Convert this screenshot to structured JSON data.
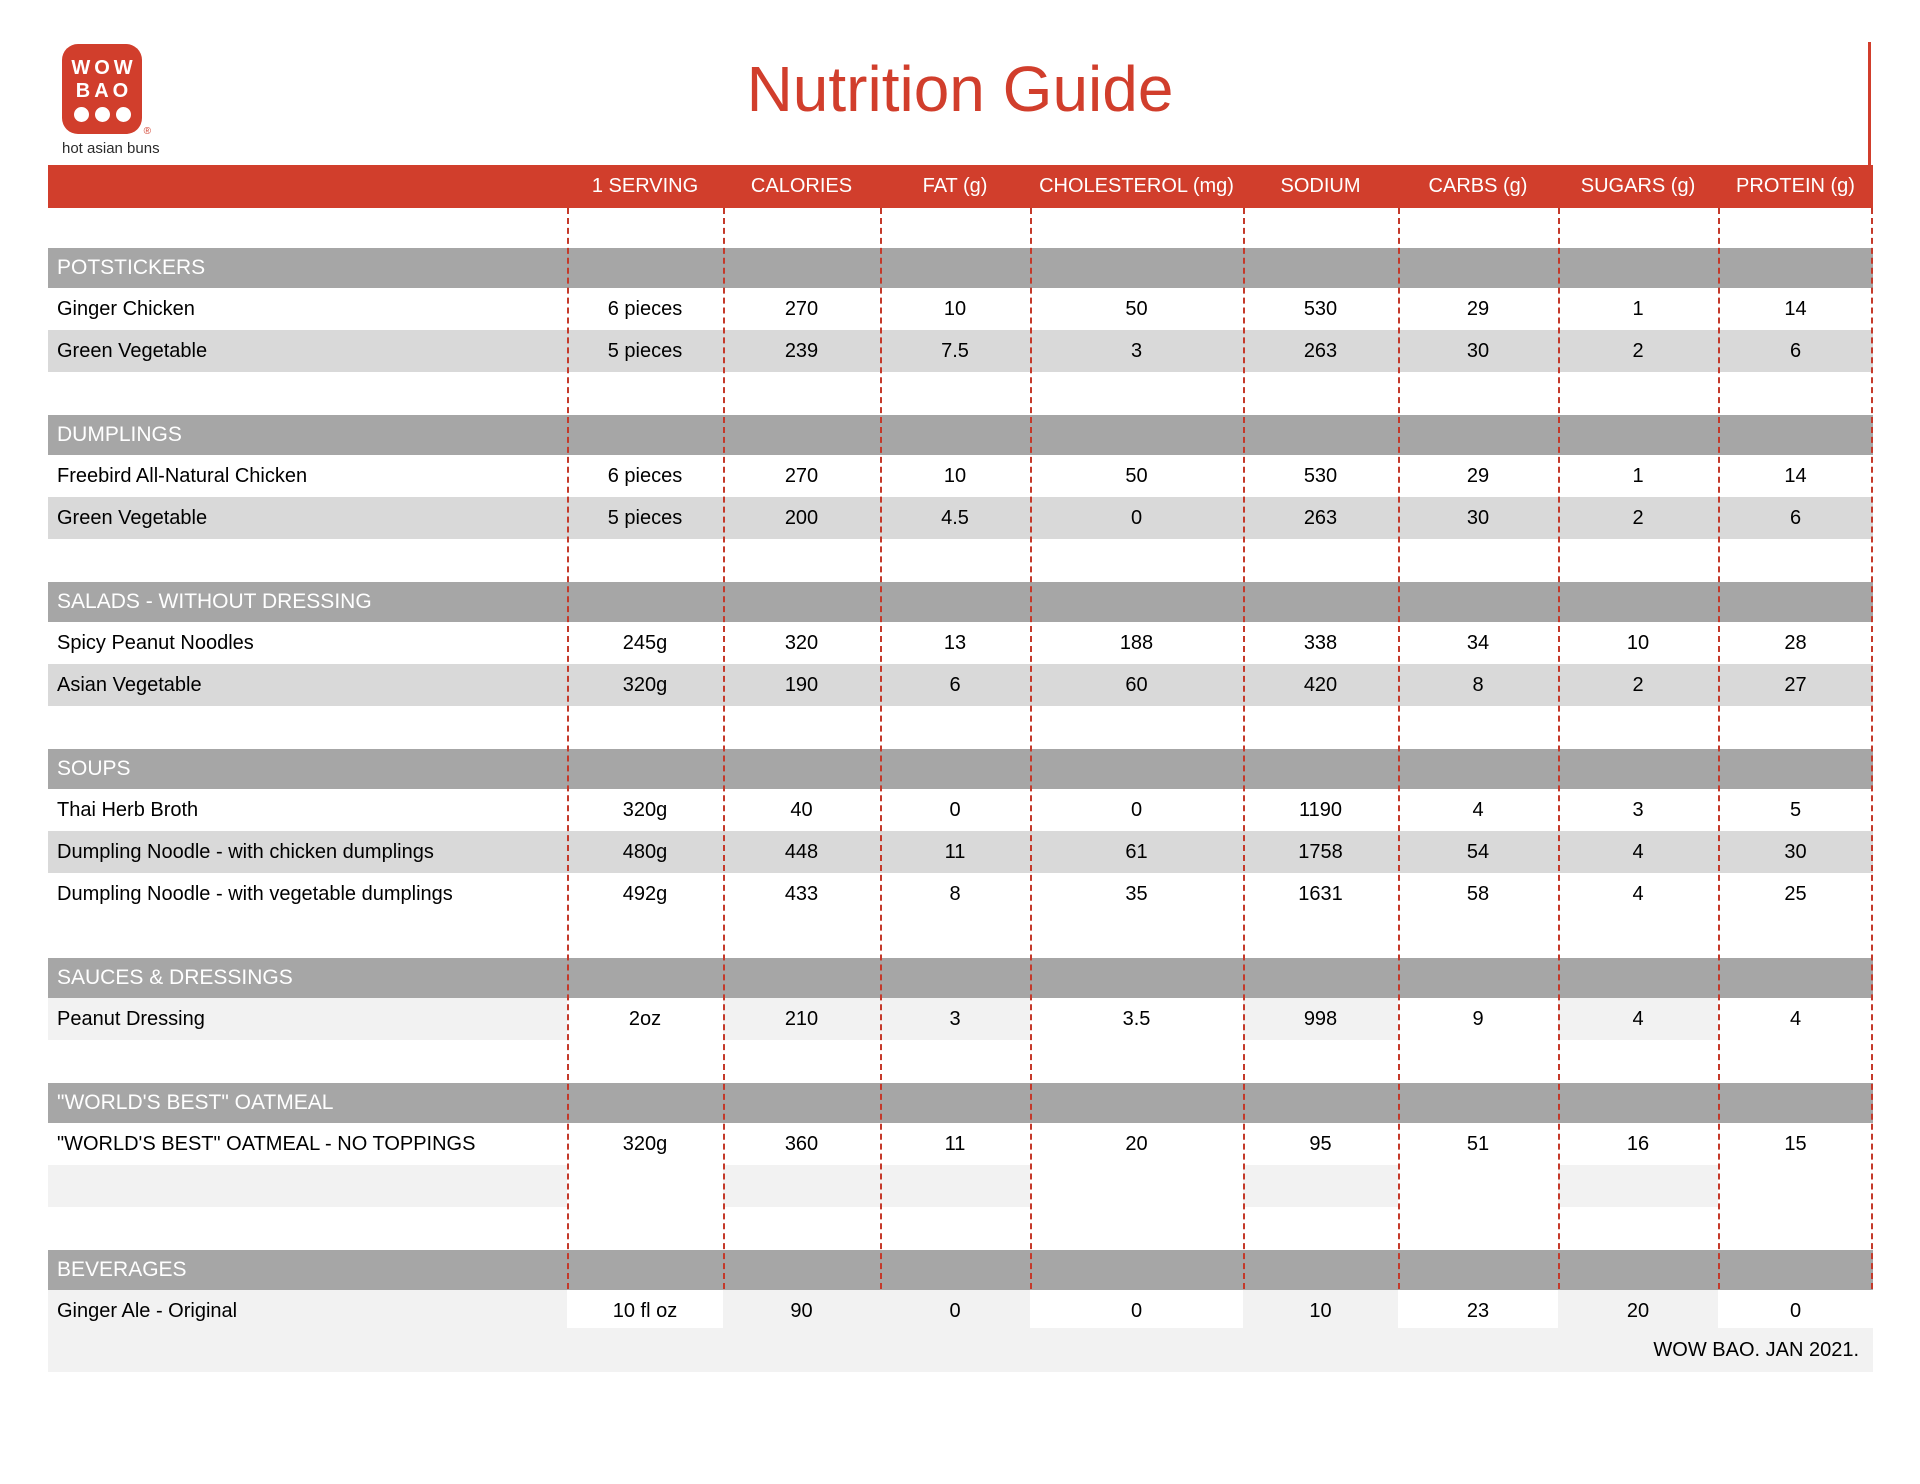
{
  "brand": {
    "logo_line1": "WOW",
    "logo_line2": "BAO",
    "registered_mark": "®",
    "tagline": "hot asian buns"
  },
  "title": "Nutrition Guide",
  "colors": {
    "red": "#d13e2c",
    "dashed_line_red": "#c4392a",
    "section_header_gray": "#a6a6a6",
    "alt_row_gray": "#d9d9d9",
    "light_row_gray": "#f2f2f2"
  },
  "table": {
    "columns": [
      "1 SERVING",
      "CALORIES",
      "FAT (g)",
      "CHOLESTEROL (mg)",
      "SODIUM",
      "CARBS (g)",
      "SUGARS (g)",
      "PROTEIN (g)"
    ],
    "light_cell_pattern": [
      0,
      2,
      3,
      5,
      7
    ],
    "sections": [
      {
        "name": "POTSTICKERS",
        "items": [
          {
            "name": "Ginger Chicken",
            "shade": "white",
            "values": [
              "6 pieces",
              "270",
              "10",
              "50",
              "530",
              "29",
              "1",
              "14"
            ]
          },
          {
            "name": "Green Vegetable",
            "shade": "gray",
            "values": [
              "5 pieces",
              "239",
              "7.5",
              "3",
              "263",
              "30",
              "2",
              "6"
            ]
          }
        ]
      },
      {
        "name": "DUMPLINGS",
        "items": [
          {
            "name": "Freebird All-Natural Chicken",
            "shade": "white",
            "values": [
              "6 pieces",
              "270",
              "10",
              "50",
              "530",
              "29",
              "1",
              "14"
            ]
          },
          {
            "name": "Green Vegetable",
            "shade": "gray",
            "values": [
              "5 pieces",
              "200",
              "4.5",
              "0",
              "263",
              "30",
              "2",
              "6"
            ]
          }
        ]
      },
      {
        "name": "SALADS - WITHOUT DRESSING",
        "items": [
          {
            "name": "Spicy Peanut Noodles",
            "shade": "white",
            "values": [
              "245g",
              "320",
              "13",
              "188",
              "338",
              "34",
              "10",
              "28"
            ]
          },
          {
            "name": "Asian Vegetable",
            "shade": "gray",
            "values": [
              "320g",
              "190",
              "6",
              "60",
              "420",
              "8",
              "2",
              "27"
            ]
          }
        ]
      },
      {
        "name": "SOUPS",
        "items": [
          {
            "name": "Thai Herb Broth",
            "shade": "white",
            "values": [
              "320g",
              "40",
              "0",
              "0",
              "1190",
              "4",
              "3",
              "5"
            ]
          },
          {
            "name": "Dumpling Noodle - with chicken dumplings",
            "shade": "gray",
            "values": [
              "480g",
              "448",
              "11",
              "61",
              "1758",
              "54",
              "4",
              "30"
            ]
          },
          {
            "name": "Dumpling Noodle - with vegetable dumplings",
            "shade": "white",
            "values": [
              "492g",
              "433",
              "8",
              "35",
              "1631",
              "58",
              "4",
              "25"
            ]
          }
        ]
      },
      {
        "name": "SAUCES & DRESSINGS",
        "items": [
          {
            "name": "Peanut Dressing",
            "shade": "light",
            "values": [
              "2oz",
              "210",
              "3",
              "3.5",
              "998",
              "9",
              "4",
              "4"
            ]
          }
        ]
      },
      {
        "name": "\"WORLD'S BEST\" OATMEAL",
        "items": [
          {
            "name": "\"WORLD'S BEST\" OATMEAL - NO TOPPINGS",
            "shade": "white",
            "values": [
              "320g",
              "360",
              "11",
              "20",
              "95",
              "51",
              "16",
              "15"
            ]
          },
          {
            "name": "",
            "shade": "light",
            "values": [
              "",
              "",
              "",
              "",
              "",
              "",
              "",
              ""
            ]
          }
        ]
      },
      {
        "name": "BEVERAGES",
        "items": [
          {
            "name": "Ginger Ale - Original",
            "shade": "light",
            "values": [
              "10 fl oz",
              "90",
              "0",
              "0",
              "10",
              "23",
              "20",
              "0"
            ]
          }
        ]
      }
    ],
    "divider_x_positions": [
      567,
      723,
      880,
      1030,
      1243,
      1398,
      1558,
      1718,
      1871
    ]
  },
  "footer": {
    "note": "WOW BAO. JAN 2021."
  }
}
